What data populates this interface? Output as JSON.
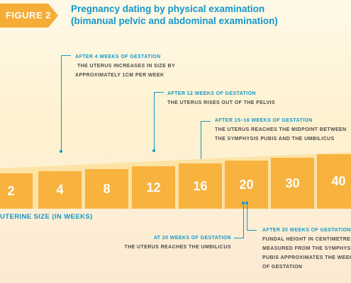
{
  "figure": {
    "badge": "FIGURE 2",
    "title_line1": "Pregnancy dating by physical examination",
    "title_line2": "(bimanual pelvic and abdominal examination)"
  },
  "scale": {
    "weeks": [
      "2",
      "4",
      "8",
      "12",
      "16",
      "20",
      "30",
      "40"
    ],
    "axis_label": "UTERINE SIZE (IN WEEKS)"
  },
  "annotations": {
    "week4": {
      "heading": "AFTER 4 WEEKS OF GESTATION",
      "lines": [
        "THE UTERUS INCREASES IN SIZE BY",
        "APPROXIMATELY 1CM PER WEEK"
      ]
    },
    "week12": {
      "heading": "AFTER 12 WEEKS OF GESTATION",
      "lines": [
        "THE UTERUS RISES OUT OF THE PELVIS"
      ]
    },
    "week15_16": {
      "heading": "AFTER 15–16 WEEKS OF GESTATION",
      "lines": [
        "THE UTERUS REACHES THE MIDPOINT BETWEEN",
        "THE SYMPHYSIS PUBIS AND THE UMBILICUS"
      ]
    },
    "at20": {
      "heading": "AT 20 WEEKS OF GESTATION",
      "lines": [
        "THE UTERUS REACHES THE UMBILICUS"
      ]
    },
    "after20": {
      "heading": "AFTER 20 WEEKS OF GESTATION",
      "lines": [
        "FUNDAL HEIGHT IN CENTIMETRES",
        "MEASURED FROM THE SYMPHYSIS",
        "PUBIS APPROXIMATES THE WEEKS",
        "OF GESTATION"
      ]
    }
  },
  "colors": {
    "accent_blue": "#1597c9",
    "box_orange": "#f7b33d",
    "band_light": "#fde4a6"
  }
}
